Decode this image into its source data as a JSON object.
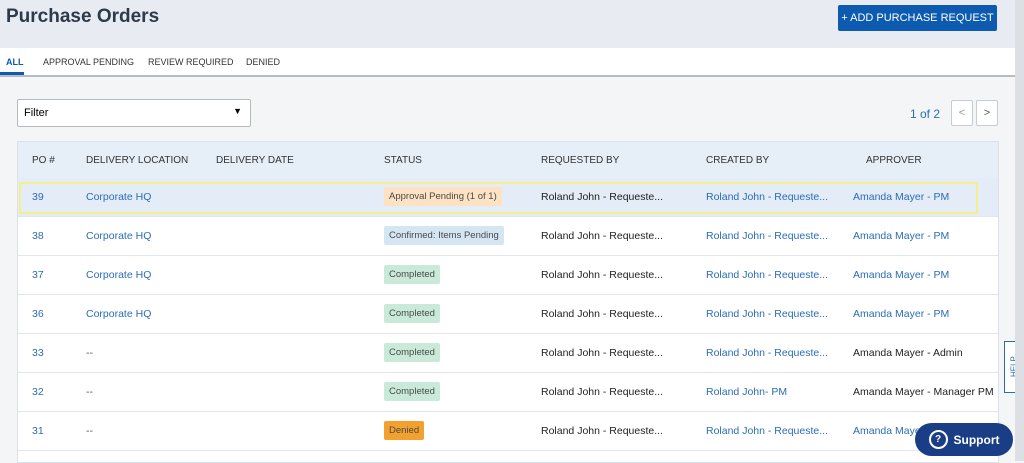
{
  "header": {
    "title": "Purchase Orders",
    "add_button": "+ ADD PURCHASE REQUEST"
  },
  "tabs": [
    "ALL",
    "APPROVAL PENDING",
    "REVIEW REQUIRED",
    "DENIED"
  ],
  "filter": {
    "label": "Filter"
  },
  "pagination": {
    "text": "1 of 2"
  },
  "table": {
    "columns": [
      "PO #",
      "DELIVERY LOCATION",
      "DELIVERY DATE",
      "STATUS",
      "REQUESTED BY",
      "CREATED BY",
      "APPROVER"
    ],
    "rows": [
      {
        "po": "39",
        "location": "Corporate HQ",
        "status": "Approval Pending (1 of 1)",
        "status_color": "#fde3c4",
        "requested_by": "Roland John  - Requeste...",
        "created_by": "Roland John  - Requeste...",
        "approver": "Amanda Mayer - PM",
        "approver_color": "#2a6db5"
      },
      {
        "po": "38",
        "location": "Corporate HQ",
        "status": "Confirmed: Items Pending",
        "status_color": "#d5e6f3",
        "requested_by": "Roland John  - Requeste...",
        "created_by": "Roland John  - Requeste...",
        "approver": "Amanda Mayer - PM",
        "approver_color": "#2a6db5"
      },
      {
        "po": "37",
        "location": "Corporate HQ",
        "status": "Completed",
        "status_color": "#c9ead8",
        "requested_by": "Roland John  - Requeste...",
        "created_by": "Roland John  - Requeste...",
        "approver": "Amanda Mayer - PM",
        "approver_color": "#2a6db5"
      },
      {
        "po": "36",
        "location": "Corporate HQ",
        "status": "Completed",
        "status_color": "#c9ead8",
        "requested_by": "Roland John  - Requeste...",
        "created_by": "Roland John  - Requeste...",
        "approver": "Amanda Mayer - PM",
        "approver_color": "#2a6db5"
      },
      {
        "po": "33",
        "location": "--",
        "status": "Completed",
        "status_color": "#c9ead8",
        "requested_by": "Roland John  - Requeste...",
        "created_by": "Roland John  - Requeste...",
        "approver": "Amanda Mayer - Admin",
        "approver_color": "#222222"
      },
      {
        "po": "32",
        "location": "--",
        "status": "Completed",
        "status_color": "#c9ead8",
        "requested_by": "Roland John  - Requeste...",
        "created_by": "Roland John- PM",
        "approver": "Amanda Mayer - Manager PM",
        "approver_color": "#222222"
      },
      {
        "po": "31",
        "location": "--",
        "status": "Denied",
        "status_color": "#f2a12e",
        "requested_by": "Roland John  - Requeste...",
        "created_by": "Roland John  - Requeste...",
        "approver": "Amanda Mayer - PM",
        "approver_color": "#2a6db5"
      }
    ]
  },
  "help": "HELP",
  "support": "Support"
}
